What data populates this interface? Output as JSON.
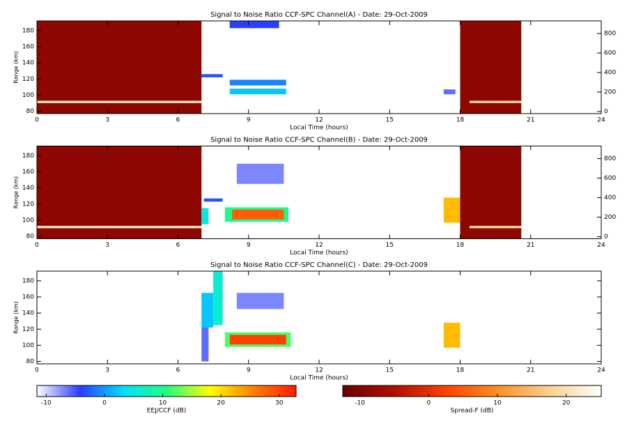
{
  "chart_data": [
    {
      "type": "heatmap",
      "title": "Signal to Noise Ratio CCF-SPC Channel(A) - Date: 29-Oct-2009",
      "xlabel": "Local Time (hours)",
      "ylabel": "Range (km)",
      "xlim": [
        0,
        24
      ],
      "xticks": [
        0,
        3,
        6,
        9,
        12,
        15,
        18,
        21,
        24
      ],
      "ylim": [
        77,
        192
      ],
      "yticks": [
        80,
        100,
        120,
        140,
        160,
        180
      ],
      "y2lim": [
        -21,
        929
      ],
      "y2ticks": [
        0,
        200,
        400,
        600,
        800
      ],
      "regions": [
        {
          "t": [
            0,
            7
          ],
          "r": [
            77,
            192
          ],
          "snr": -9,
          "scale": "spreadf"
        },
        {
          "t": [
            0,
            7
          ],
          "r": [
            90,
            93
          ],
          "snr": 20,
          "scale": "spreadf"
        },
        {
          "t": [
            18,
            20.6
          ],
          "r": [
            77,
            192
          ],
          "snr": -9,
          "scale": "spreadf"
        },
        {
          "t": [
            18.4,
            20.6
          ],
          "r": [
            90,
            93
          ],
          "snr": 18,
          "scale": "spreadf"
        },
        {
          "t": [
            7,
            7.9
          ],
          "r": [
            122,
            126
          ],
          "snr": -3,
          "scale": "eej"
        },
        {
          "t": [
            8.2,
            10.3
          ],
          "r": [
            183,
            192
          ],
          "snr": -4,
          "scale": "eej"
        },
        {
          "t": [
            8.2,
            10.6
          ],
          "r": [
            112,
            119
          ],
          "snr": -1,
          "scale": "eej"
        },
        {
          "t": [
            8.2,
            10.6
          ],
          "r": [
            101,
            108
          ],
          "snr": 2,
          "scale": "eej"
        },
        {
          "t": [
            17.3,
            17.8
          ],
          "r": [
            101,
            107
          ],
          "snr": -6,
          "scale": "eej"
        }
      ]
    },
    {
      "type": "heatmap",
      "title": "Signal to Noise Ratio CCF-SPC Channel(B) - Date: 29-Oct-2009",
      "xlabel": "Local Time (hours)",
      "ylabel": "Range (km)",
      "xlim": [
        0,
        24
      ],
      "xticks": [
        0,
        3,
        6,
        9,
        12,
        15,
        18,
        21,
        24
      ],
      "ylim": [
        77,
        192
      ],
      "yticks": [
        80,
        100,
        120,
        140,
        160,
        180
      ],
      "y2lim": [
        -21,
        929
      ],
      "y2ticks": [
        0,
        200,
        400,
        600,
        800
      ],
      "regions": [
        {
          "t": [
            0,
            7
          ],
          "r": [
            77,
            192
          ],
          "snr": -9,
          "scale": "spreadf"
        },
        {
          "t": [
            0,
            7
          ],
          "r": [
            90,
            93
          ],
          "snr": 20,
          "scale": "spreadf"
        },
        {
          "t": [
            18,
            20.6
          ],
          "r": [
            77,
            192
          ],
          "snr": -9,
          "scale": "spreadf"
        },
        {
          "t": [
            18.4,
            20.6
          ],
          "r": [
            90,
            93
          ],
          "snr": 18,
          "scale": "spreadf"
        },
        {
          "t": [
            7,
            7.3
          ],
          "r": [
            95,
            115
          ],
          "snr": 5,
          "scale": "eej"
        },
        {
          "t": [
            7.1,
            7.9
          ],
          "r": [
            123,
            127
          ],
          "snr": -3,
          "scale": "eej"
        },
        {
          "t": [
            8.5,
            10.5
          ],
          "r": [
            145,
            170
          ],
          "snr": -7,
          "scale": "eej"
        },
        {
          "t": [
            8,
            10.7
          ],
          "r": [
            98,
            116
          ],
          "snr": 10,
          "scale": "eej"
        },
        {
          "t": [
            8.3,
            10.5
          ],
          "r": [
            101,
            113
          ],
          "snr": 28,
          "scale": "eej"
        },
        {
          "t": [
            17.3,
            18
          ],
          "r": [
            97,
            128
          ],
          "snr": 22,
          "scale": "eej"
        }
      ]
    },
    {
      "type": "heatmap",
      "title": "Signal to Noise Ratio CCF-SPC Channel(C) - Date: 29-Oct-2009",
      "xlabel": "Local Time (hours)",
      "ylabel": "Range (km)",
      "xlim": [
        0,
        24
      ],
      "xticks": [
        0,
        3,
        6,
        9,
        12,
        15,
        18,
        21,
        24
      ],
      "ylim": [
        77,
        192
      ],
      "yticks": [
        80,
        100,
        120,
        140,
        160,
        180
      ],
      "regions": [
        {
          "t": [
            7,
            7.3
          ],
          "r": [
            80,
            125
          ],
          "snr": -6,
          "scale": "eej"
        },
        {
          "t": [
            7,
            7.5
          ],
          "r": [
            122,
            165
          ],
          "snr": 2,
          "scale": "eej"
        },
        {
          "t": [
            7.5,
            7.9
          ],
          "r": [
            125,
            192
          ],
          "snr": 6,
          "scale": "eej"
        },
        {
          "t": [
            8.5,
            10.5
          ],
          "r": [
            145,
            165
          ],
          "snr": -7,
          "scale": "eej"
        },
        {
          "t": [
            8,
            10.8
          ],
          "r": [
            98,
            116
          ],
          "snr": 12,
          "scale": "eej"
        },
        {
          "t": [
            8.2,
            10.6
          ],
          "r": [
            101,
            113
          ],
          "snr": 30,
          "scale": "eej"
        },
        {
          "t": [
            17.3,
            18
          ],
          "r": [
            97,
            128
          ],
          "snr": 22,
          "scale": "eej"
        }
      ]
    },
    {
      "type": "colorbar",
      "name": "eej",
      "label": "EEJ/CCF (dB)",
      "xlim": [
        -11.6,
        32.9
      ],
      "xticks": [
        -10,
        0,
        10,
        20,
        30
      ],
      "colors": [
        "#ffffff",
        "#2a3cff",
        "#00e0ff",
        "#20ff80",
        "#ffff00",
        "#ff8000",
        "#ff1a00"
      ]
    },
    {
      "type": "colorbar",
      "name": "spreadf",
      "label": "Spread-F (dB)",
      "xlim": [
        -12.5,
        25.1
      ],
      "xticks": [
        -10,
        0,
        10,
        20
      ],
      "colors": [
        "#6a0000",
        "#b01000",
        "#ff4000",
        "#ff9020",
        "#ffd090",
        "#ffffff"
      ]
    }
  ]
}
